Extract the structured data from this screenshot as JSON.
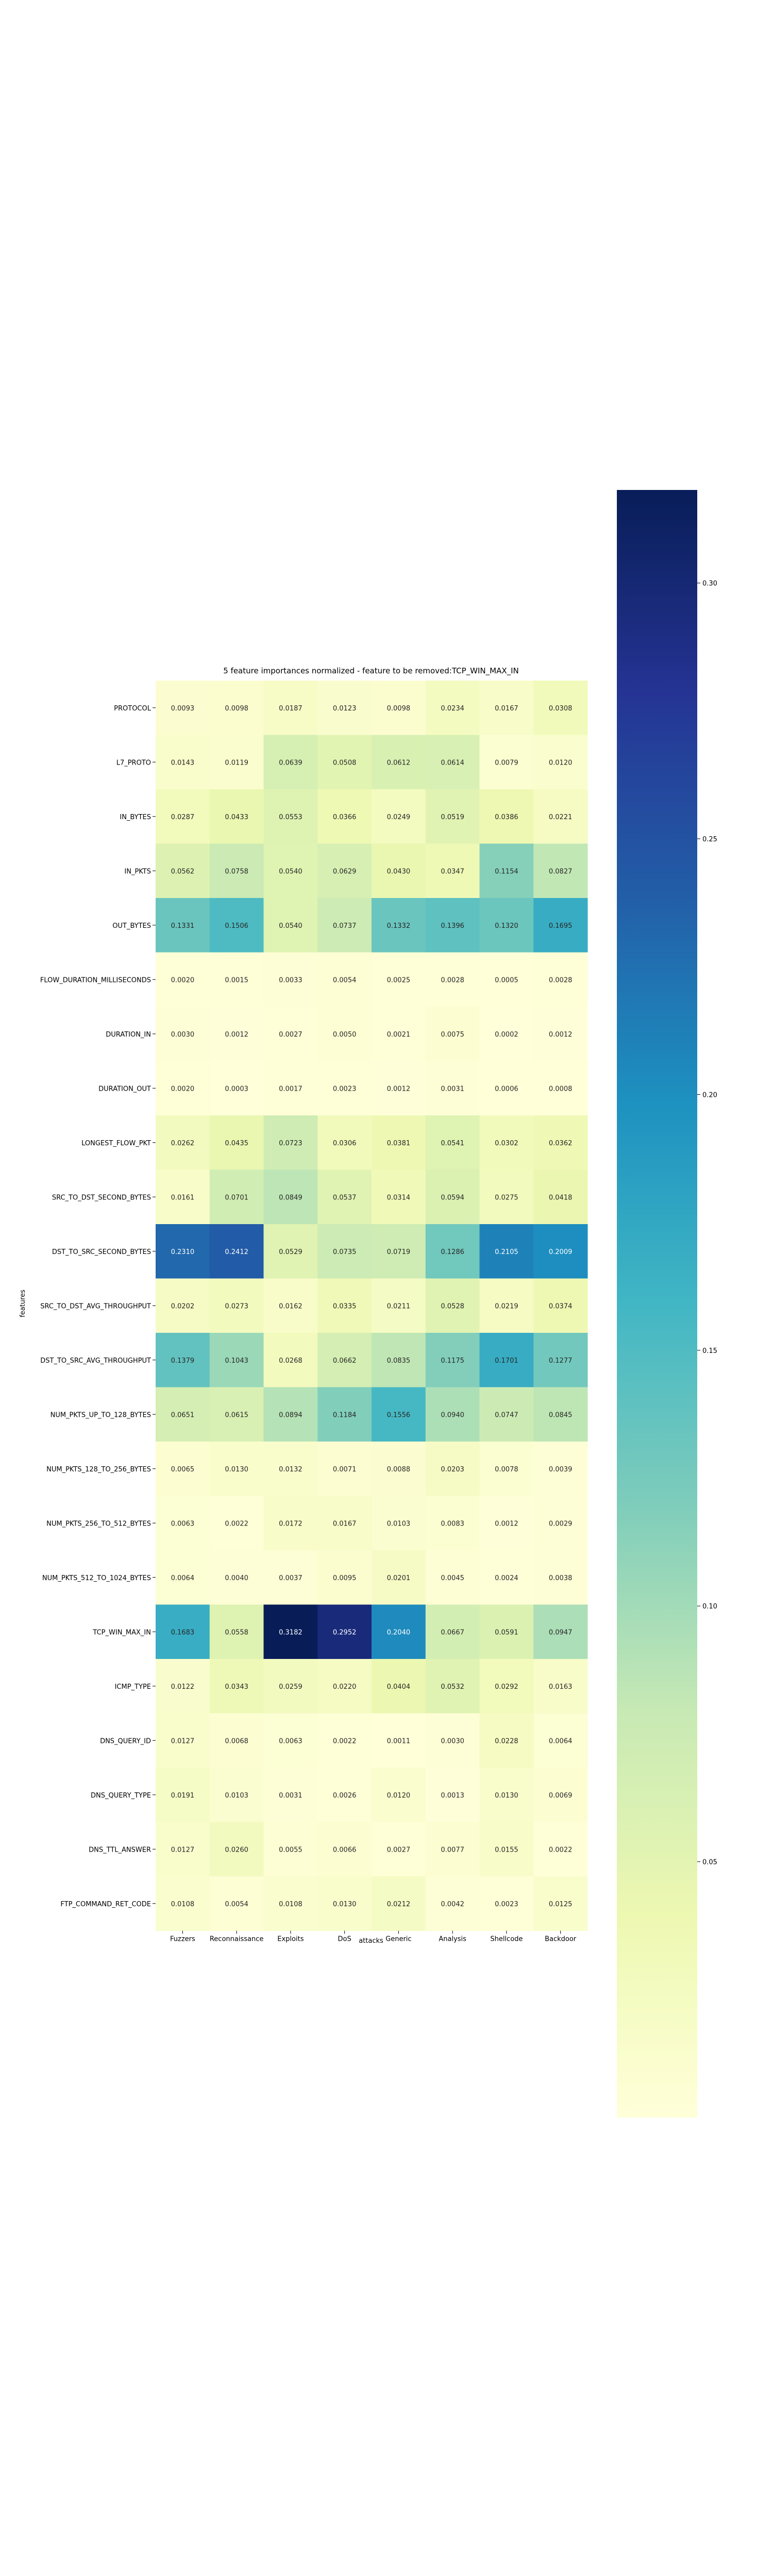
{
  "chart_data": {
    "type": "heatmap",
    "title": "5 feature importances normalized - feature to be removed:TCP_WIN_MAX_IN",
    "xlabel": "attacks",
    "ylabel": "features",
    "colormap": "YlGnBu",
    "colorbar": {
      "vmin": 0.0,
      "vmax": 0.3182,
      "ticks": [
        0.05,
        0.1,
        0.15,
        0.2,
        0.25,
        0.3
      ],
      "tick_labels": [
        "0.05",
        "0.10",
        "0.15",
        "0.20",
        "0.25",
        "0.30"
      ]
    },
    "x_categories": [
      "Fuzzers",
      "Reconnaissance",
      "Exploits",
      "DoS",
      "Generic",
      "Analysis",
      "Shellcode",
      "Backdoor"
    ],
    "y_categories": [
      "PROTOCOL",
      "L7_PROTO",
      "IN_BYTES",
      "IN_PKTS",
      "OUT_BYTES",
      "FLOW_DURATION_MILLISECONDS",
      "DURATION_IN",
      "DURATION_OUT",
      "LONGEST_FLOW_PKT",
      "SRC_TO_DST_SECOND_BYTES",
      "DST_TO_SRC_SECOND_BYTES",
      "SRC_TO_DST_AVG_THROUGHPUT",
      "DST_TO_SRC_AVG_THROUGHPUT",
      "NUM_PKTS_UP_TO_128_BYTES",
      "NUM_PKTS_128_TO_256_BYTES",
      "NUM_PKTS_256_TO_512_BYTES",
      "NUM_PKTS_512_TO_1024_BYTES",
      "TCP_WIN_MAX_IN",
      "ICMP_TYPE",
      "DNS_QUERY_ID",
      "DNS_QUERY_TYPE",
      "DNS_TTL_ANSWER",
      "FTP_COMMAND_RET_CODE"
    ],
    "values": [
      [
        0.0093,
        0.0098,
        0.0187,
        0.0123,
        0.0098,
        0.0234,
        0.0167,
        0.0308
      ],
      [
        0.0143,
        0.0119,
        0.0639,
        0.0508,
        0.0612,
        0.0614,
        0.0079,
        0.012
      ],
      [
        0.0287,
        0.0433,
        0.0553,
        0.0366,
        0.0249,
        0.0519,
        0.0386,
        0.0221
      ],
      [
        0.0562,
        0.0758,
        0.054,
        0.0629,
        0.043,
        0.0347,
        0.1154,
        0.0827
      ],
      [
        0.1331,
        0.1506,
        0.054,
        0.0737,
        0.1332,
        0.1396,
        0.132,
        0.1695
      ],
      [
        0.002,
        0.0015,
        0.0033,
        0.0054,
        0.0025,
        0.0028,
        0.0005,
        0.0028
      ],
      [
        0.003,
        0.0012,
        0.0027,
        0.005,
        0.0021,
        0.0075,
        0.0002,
        0.0012
      ],
      [
        0.002,
        0.0003,
        0.0017,
        0.0023,
        0.0012,
        0.0031,
        0.0006,
        0.0008
      ],
      [
        0.0262,
        0.0435,
        0.0723,
        0.0306,
        0.0381,
        0.0541,
        0.0302,
        0.0362
      ],
      [
        0.0161,
        0.0701,
        0.0849,
        0.0537,
        0.0314,
        0.0594,
        0.0275,
        0.0418
      ],
      [
        0.231,
        0.2412,
        0.0529,
        0.0735,
        0.0719,
        0.1286,
        0.2105,
        0.2009
      ],
      [
        0.0202,
        0.0273,
        0.0162,
        0.0335,
        0.0211,
        0.0528,
        0.0219,
        0.0374
      ],
      [
        0.1379,
        0.1043,
        0.0268,
        0.0662,
        0.0835,
        0.1175,
        0.1701,
        0.1277
      ],
      [
        0.0651,
        0.0615,
        0.0894,
        0.1184,
        0.1556,
        0.094,
        0.0747,
        0.0845
      ],
      [
        0.0065,
        0.013,
        0.0132,
        0.0071,
        0.0088,
        0.0203,
        0.0078,
        0.0039
      ],
      [
        0.0063,
        0.0022,
        0.0172,
        0.0167,
        0.0103,
        0.0083,
        0.0012,
        0.0029
      ],
      [
        0.0064,
        0.004,
        0.0037,
        0.0095,
        0.0201,
        0.0045,
        0.0024,
        0.0038
      ],
      [
        0.1683,
        0.0558,
        0.3182,
        0.2952,
        0.204,
        0.0667,
        0.0591,
        0.0947
      ],
      [
        0.0122,
        0.0343,
        0.0259,
        0.022,
        0.0404,
        0.0532,
        0.0292,
        0.0163
      ],
      [
        0.0127,
        0.0068,
        0.0063,
        0.0022,
        0.0011,
        0.003,
        0.0228,
        0.0064
      ],
      [
        0.0191,
        0.0103,
        0.0031,
        0.0026,
        0.012,
        0.0013,
        0.013,
        0.0069
      ],
      [
        0.0127,
        0.026,
        0.0055,
        0.0066,
        0.0027,
        0.0077,
        0.0155,
        0.0022
      ],
      [
        0.0108,
        0.0054,
        0.0108,
        0.013,
        0.0212,
        0.0042,
        0.0023,
        0.0125
      ]
    ]
  }
}
